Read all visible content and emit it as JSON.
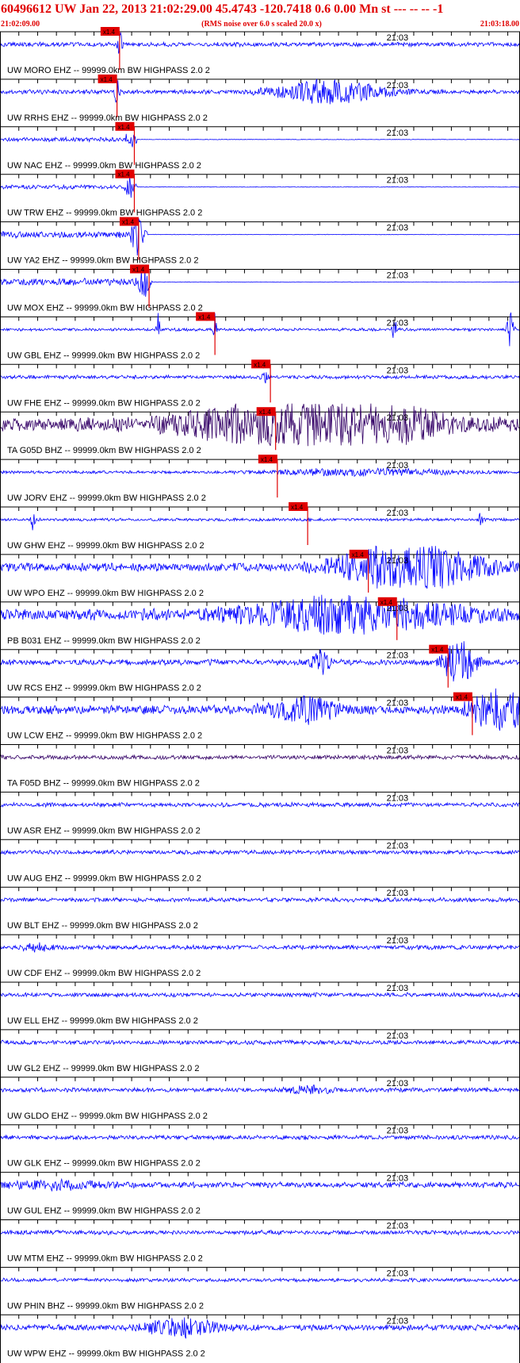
{
  "header": {
    "title": "60496612 UW Jan 22, 2013 21:02:29.00   45.4743 -120.7418  0.6 0.00 Mn st --- -- --  -1",
    "start_time": "21:02:09.00",
    "note": "(RMS noise over 6.0 s scaled 20.0 x)",
    "end_time": "21:03:18.00"
  },
  "traces": [
    {
      "label": "UW MORO EHZ -- 99999.0km BW  HIGHPASS  2.0  2",
      "time_label": "21:03",
      "pick": "x1.4"
    },
    {
      "label": "UW RRHS EHZ -- 99999.0km BW  HIGHPASS  2.0  2",
      "time_label": "21:03",
      "pick": "x1.4"
    },
    {
      "label": "UW NAC EHZ -- 99999.0km BW  HIGHPASS  2.0  2",
      "time_label": "21:03",
      "pick": "x1.4"
    },
    {
      "label": "UW TRW EHZ -- 99999.0km BW  HIGHPASS  2.0  2",
      "time_label": "21:03",
      "pick": "x1.4"
    },
    {
      "label": "UW YA2 EHZ -- 99999.0km BW  HIGHPASS  2.0  2",
      "time_label": "21:03",
      "pick": "x1.4"
    },
    {
      "label": "UW MOX EHZ -- 99999.0km BW  HIGHPASS  2.0  2",
      "time_label": "21:03",
      "pick": "x1.4"
    },
    {
      "label": "UW GBL EHZ -- 99999.0km BW  HIGHPASS  2.0  2",
      "time_label": "21:03",
      "pick": "x1.4"
    },
    {
      "label": "UW FHE EHZ -- 99999.0km BW  HIGHPASS  2.0  2",
      "time_label": "21:03",
      "pick": "x1.4"
    },
    {
      "label": "TA G05D BHZ -- 99999.0km BW  HIGHPASS  2.0  2",
      "time_label": "21:03",
      "pick": "x1.4"
    },
    {
      "label": "UW JORV EHZ -- 99999.0km BW  HIGHPASS  2.0  2",
      "time_label": "21:03",
      "pick": "x1.4"
    },
    {
      "label": "UW GHW EHZ -- 99999.0km BW  HIGHPASS  2.0  2",
      "time_label": "21:03",
      "pick": "x1.4"
    },
    {
      "label": "UW WPO EHZ -- 99999.0km BW  HIGHPASS  2.0  2",
      "time_label": "21:03",
      "pick": "x1.4"
    },
    {
      "label": "PB B031 EHZ -- 99999.0km BW  HIGHPASS  2.0  2",
      "time_label": "21:03",
      "pick": "x1.4"
    },
    {
      "label": "UW RCS EHZ -- 99999.0km BW  HIGHPASS  2.0  2",
      "time_label": "21:03",
      "pick": "x1.4"
    },
    {
      "label": "UW LCW EHZ -- 99999.0km BW  HIGHPASS  2.0  2",
      "time_label": "21:03",
      "pick": "x1.4"
    },
    {
      "label": "TA F05D BHZ -- 99999.0km BW  HIGHPASS  2.0  2",
      "time_label": "21:03"
    },
    {
      "label": "UW ASR EHZ -- 99999.0km BW  HIGHPASS  2.0  2",
      "time_label": "21:03"
    },
    {
      "label": "UW AUG EHZ -- 99999.0km BW  HIGHPASS  2.0  2",
      "time_label": "21:03"
    },
    {
      "label": "UW BLT EHZ -- 99999.0km BW  HIGHPASS  2.0  2",
      "time_label": "21:03"
    },
    {
      "label": "UW CDF EHZ -- 99999.0km BW  HIGHPASS  2.0  2",
      "time_label": "21:03"
    },
    {
      "label": "UW ELL EHZ -- 99999.0km BW  HIGHPASS  2.0  2",
      "time_label": "21:03"
    },
    {
      "label": "UW GL2 EHZ -- 99999.0km BW  HIGHPASS  2.0  2",
      "time_label": "21:03"
    },
    {
      "label": "UW GLDO EHZ -- 99999.0km BW  HIGHPASS  2.0  2",
      "time_label": "21:03"
    },
    {
      "label": "UW GLK EHZ -- 99999.0km BW  HIGHPASS  2.0  2",
      "time_label": "21:03"
    },
    {
      "label": "UW GUL EHZ -- 99999.0km BW  HIGHPASS  2.0  2",
      "time_label": "21:03"
    },
    {
      "label": "UW MTM EHZ -- 99999.0km BW  HIGHPASS  2.0  2",
      "time_label": "21:03"
    },
    {
      "label": "UW PHIN BHZ -- 99999.0km BW  HIGHPASS  2.0  2",
      "time_label": "21:03"
    },
    {
      "label": "UW WPW EHZ -- 99999.0km BW  HIGHPASS  2.0  2",
      "time_label": "21:03"
    }
  ]
}
